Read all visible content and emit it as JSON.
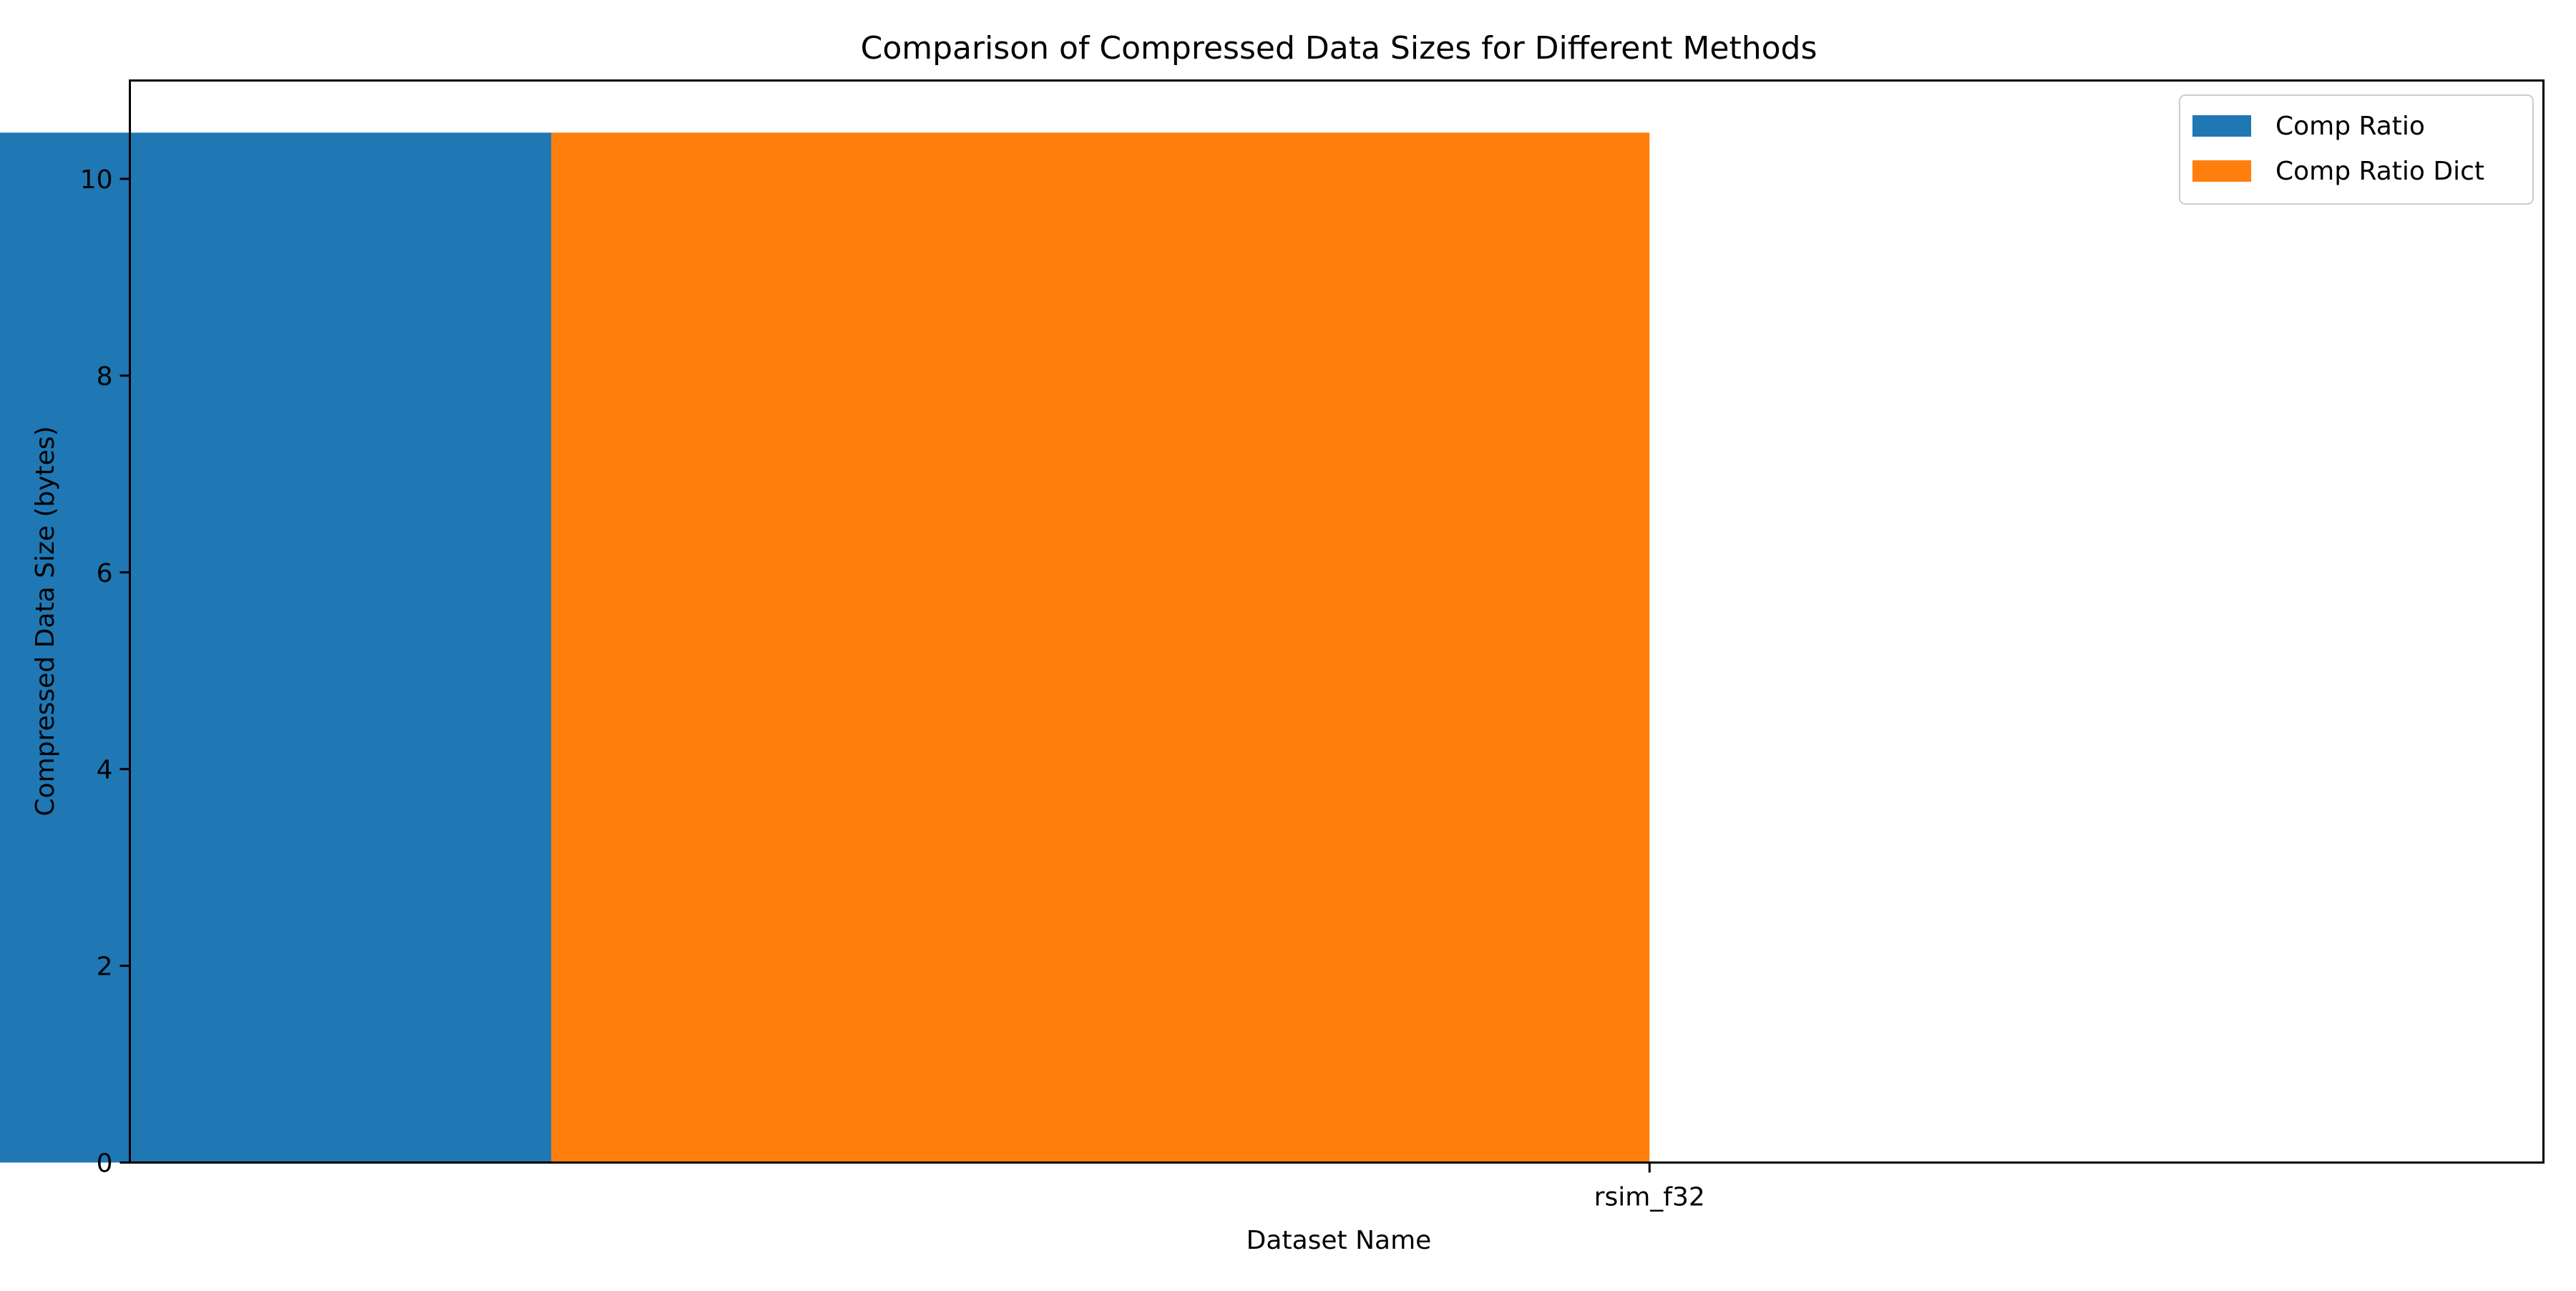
{
  "chart_data": {
    "type": "bar",
    "title": "Comparison of Compressed Data Sizes for Different Methods",
    "xlabel": "Dataset Name",
    "ylabel": "Compressed Data Size (bytes)",
    "categories": [
      "rsim_f32"
    ],
    "series": [
      {
        "name": "Comp Ratio",
        "color": "#1f77b4",
        "values": [
          10.47
        ]
      },
      {
        "name": "Comp Ratio Dict",
        "color": "#ff7f0e",
        "values": [
          10.47
        ]
      }
    ],
    "ylim": [
      0,
      11
    ],
    "yticks": [
      0,
      2,
      4,
      6,
      8,
      10
    ],
    "grid": false,
    "legend_position": "top-right"
  }
}
